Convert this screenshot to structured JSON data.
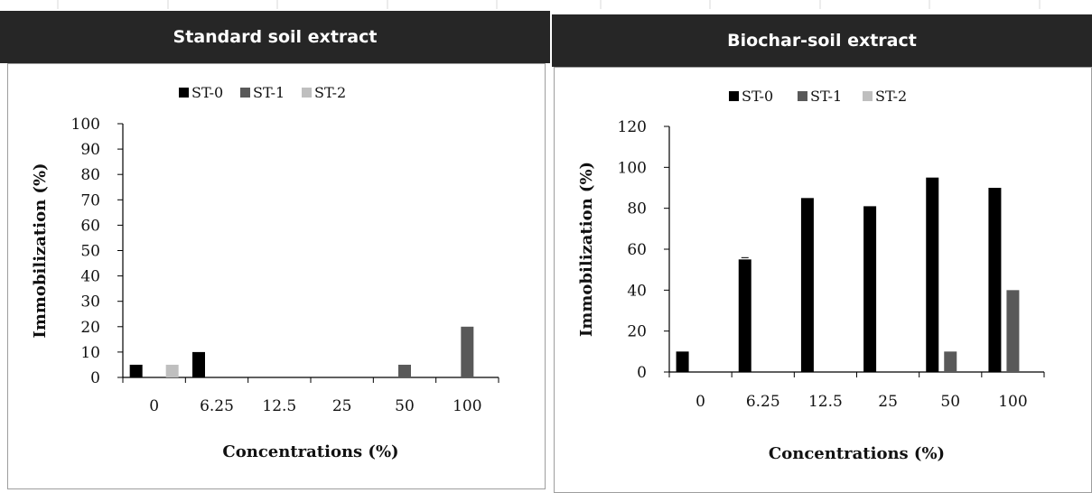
{
  "colors": {
    "ST-0": "#000000",
    "ST-1": "#595959",
    "ST-2": "#bfbfbf",
    "header_bg": "#262626",
    "header_text": "#ffffff"
  },
  "chart_data": [
    {
      "type": "bar",
      "title": "Standard soil extract",
      "xlabel": "Concentrations (%)",
      "ylabel": "Immobilization (%)",
      "categories": [
        "0",
        "6.25",
        "12.5",
        "25",
        "50",
        "100"
      ],
      "ylim": [
        0,
        100
      ],
      "yticks": [
        0,
        10,
        20,
        30,
        40,
        50,
        60,
        70,
        80,
        90,
        100
      ],
      "legend": [
        "ST-0",
        "ST-1",
        "ST-2"
      ],
      "legend_position": "top",
      "grid": false,
      "series": [
        {
          "name": "ST-0",
          "values": [
            5,
            10,
            0,
            0,
            0,
            0
          ]
        },
        {
          "name": "ST-1",
          "values": [
            0,
            0,
            0,
            0,
            5,
            20
          ]
        },
        {
          "name": "ST-2",
          "values": [
            5,
            0,
            0,
            0,
            0,
            0
          ]
        }
      ]
    },
    {
      "type": "bar",
      "title": "Biochar-soil extract",
      "xlabel": "Concentrations (%)",
      "ylabel": "Immobilization (%)",
      "categories": [
        "0",
        "6.25",
        "12.5",
        "25",
        "50",
        "100"
      ],
      "ylim": [
        0,
        120
      ],
      "yticks": [
        0,
        20,
        40,
        60,
        80,
        100,
        120
      ],
      "legend": [
        "ST-0",
        "ST-1",
        "ST-2"
      ],
      "legend_position": "top",
      "grid": false,
      "series": [
        {
          "name": "ST-0",
          "values": [
            10,
            55,
            85,
            81,
            95,
            90
          ]
        },
        {
          "name": "ST-1",
          "values": [
            0,
            0,
            0,
            0,
            10,
            40
          ]
        },
        {
          "name": "ST-2",
          "values": [
            0,
            0,
            0,
            0,
            0,
            0
          ]
        }
      ]
    }
  ]
}
